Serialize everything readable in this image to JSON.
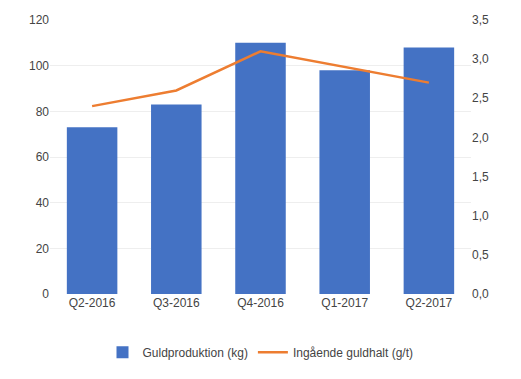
{
  "chart_data": {
    "type": "bar",
    "categories": [
      "Q2-2016",
      "Q3-2016",
      "Q4-2016",
      "Q1-2017",
      "Q2-2017"
    ],
    "series": [
      {
        "name": "Guldproduktion (kg)",
        "type": "bar",
        "color": "#4472C4",
        "values": [
          73,
          83,
          110,
          98,
          108
        ]
      },
      {
        "name": "Ingående guldhalt (g/t)",
        "type": "line",
        "axis": "y2",
        "color": "#ED7D31",
        "values": [
          2.4,
          2.6,
          3.1,
          2.9,
          2.7
        ]
      }
    ],
    "ylim": [
      0,
      120
    ],
    "yticks": [
      0,
      20,
      40,
      60,
      80,
      100,
      120
    ],
    "y2lim": [
      0.0,
      3.5
    ],
    "y2ticks": [
      {
        "value": 0.0,
        "label": "0,0"
      },
      {
        "value": 0.5,
        "label": "0,5"
      },
      {
        "value": 1.0,
        "label": "1,0"
      },
      {
        "value": 1.5,
        "label": "1,5"
      },
      {
        "value": 2.0,
        "label": "2,0"
      },
      {
        "value": 2.5,
        "label": "2,5"
      },
      {
        "value": 3.0,
        "label": "3,0"
      },
      {
        "value": 3.5,
        "label": "3,5"
      }
    ],
    "grid": true,
    "legend": "bottom"
  }
}
